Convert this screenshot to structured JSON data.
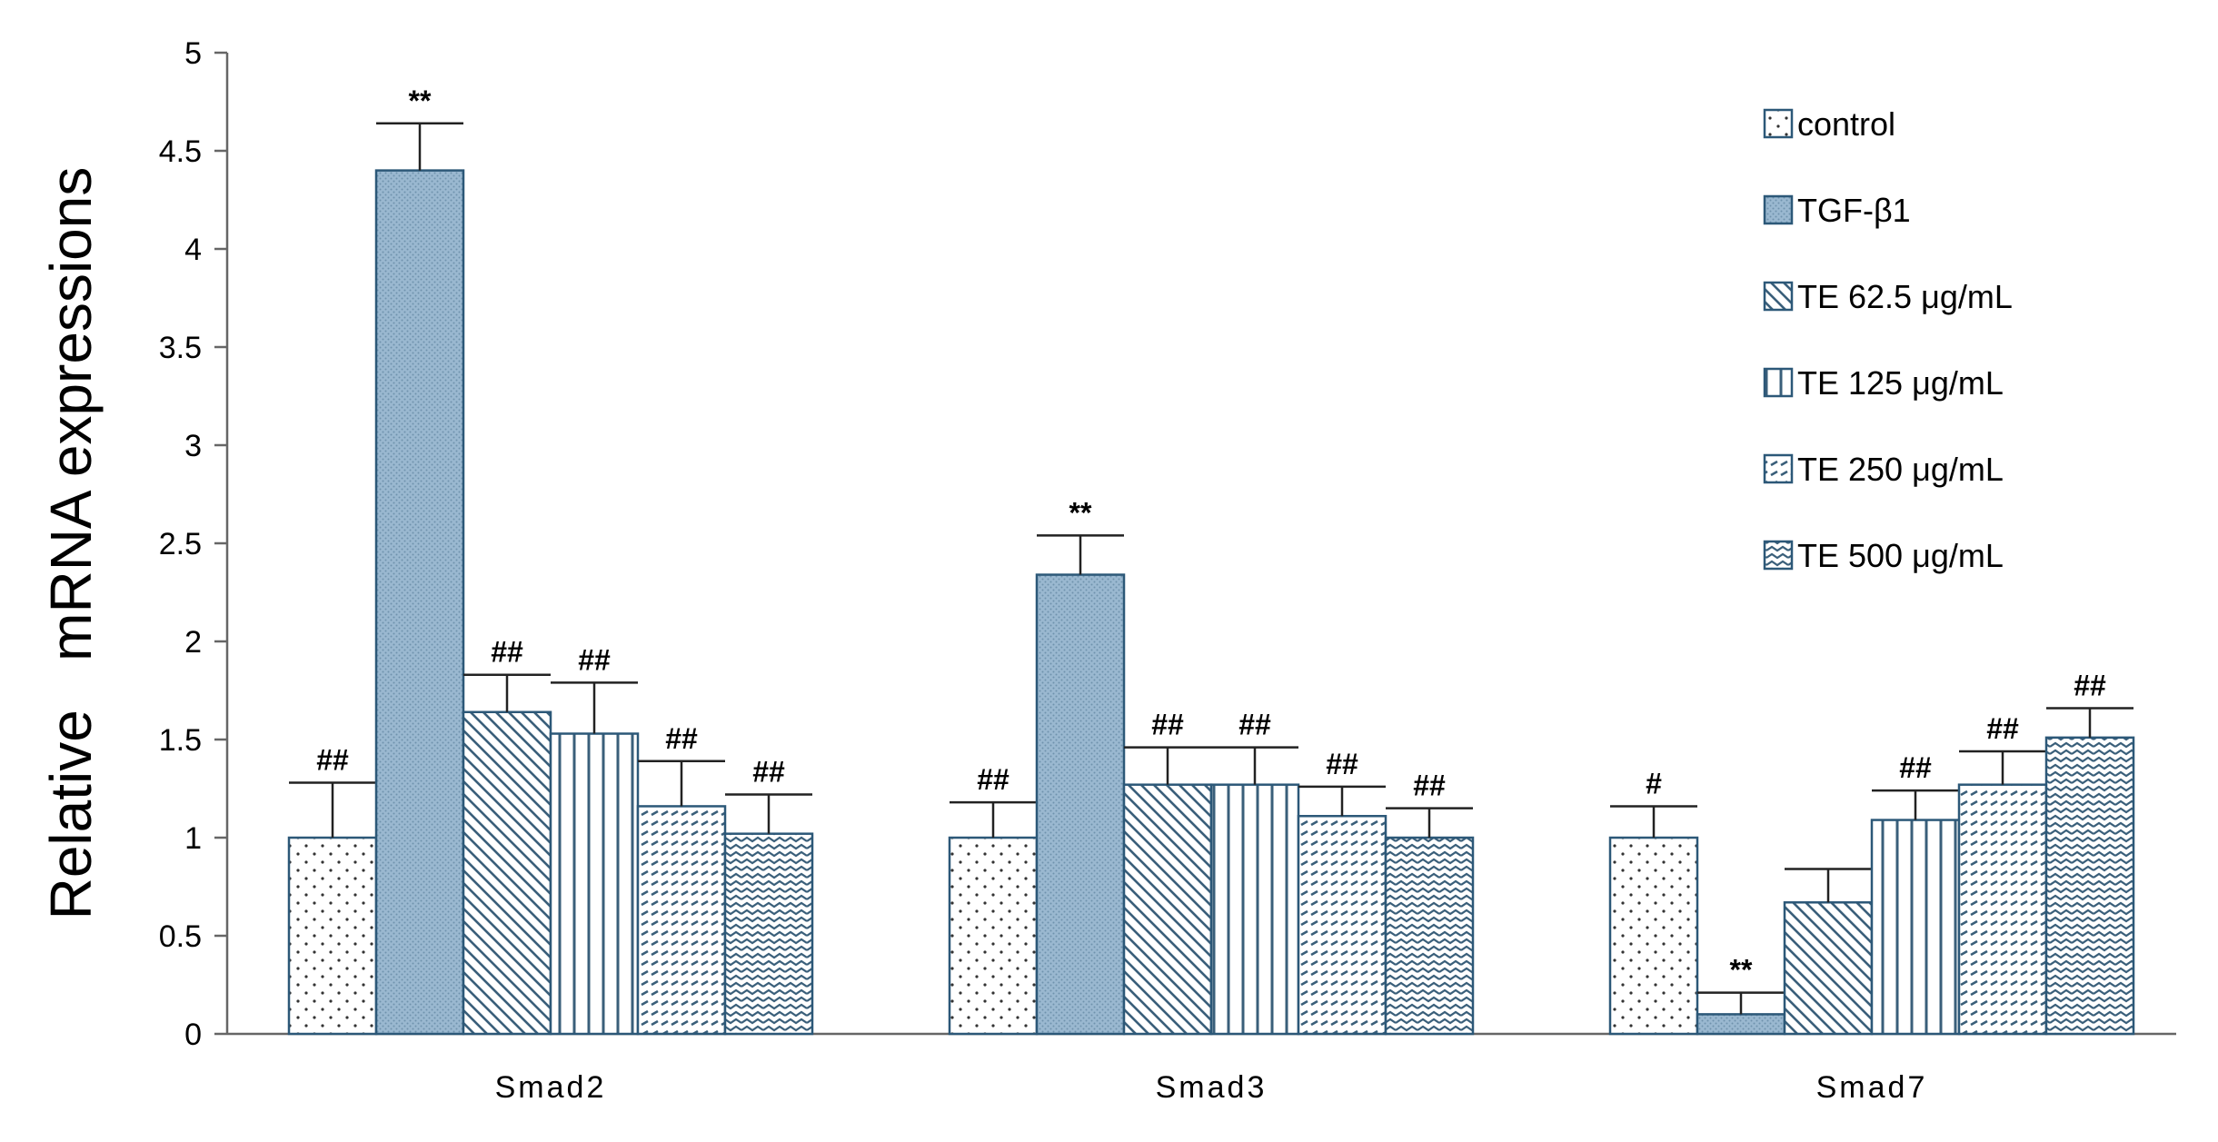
{
  "chart_data": {
    "type": "bar",
    "title": "",
    "xlabel": "",
    "ylabel": "Relative   mRNA expressions",
    "ylim": [
      0,
      5
    ],
    "yticks": [
      0,
      0.5,
      1,
      1.5,
      2,
      2.5,
      3,
      3.5,
      4,
      4.5,
      5
    ],
    "ytick_labels": [
      "0",
      "0.5",
      "1",
      "1.5",
      "2",
      "2.5",
      "3",
      "3.5",
      "4",
      "4.5",
      "5"
    ],
    "grid": false,
    "legend_position": "top-right",
    "categories": [
      "Smad2",
      "Smad3",
      "Smad7"
    ],
    "series": [
      {
        "name": "control",
        "pattern": "dots",
        "fill": "#ffffff",
        "values": [
          1.0,
          1.0,
          1.0
        ],
        "errors": [
          0.28,
          0.18,
          0.16
        ],
        "labels": [
          "##",
          "##",
          "#"
        ]
      },
      {
        "name": "TGF-β1",
        "pattern": "solid",
        "fill": "#9ab8d0",
        "values": [
          4.4,
          2.34,
          0.1
        ],
        "errors": [
          0.24,
          0.2,
          0.11
        ],
        "labels": [
          "**",
          "**",
          "**"
        ]
      },
      {
        "name": "TE 62.5 μg/mL",
        "pattern": "diagonal",
        "fill": "#ffffff",
        "values": [
          1.64,
          1.27,
          0.67
        ],
        "errors": [
          0.19,
          0.19,
          0.17
        ],
        "labels": [
          "##",
          "##",
          ""
        ]
      },
      {
        "name": "TE 125 μg/mL",
        "pattern": "vertical",
        "fill": "#ffffff",
        "values": [
          1.53,
          1.27,
          1.09
        ],
        "errors": [
          0.26,
          0.19,
          0.15
        ],
        "labels": [
          "##",
          "##",
          "##"
        ]
      },
      {
        "name": "TE 250 μg/mL",
        "pattern": "dashes",
        "fill": "#ffffff",
        "values": [
          1.16,
          1.11,
          1.27
        ],
        "errors": [
          0.23,
          0.15,
          0.17
        ],
        "labels": [
          "##",
          "##",
          "##"
        ]
      },
      {
        "name": "TE 500 μg/mL",
        "pattern": "wave",
        "fill": "#ffffff",
        "values": [
          1.02,
          1.0,
          1.51
        ],
        "errors": [
          0.2,
          0.15,
          0.15
        ],
        "labels": [
          "##",
          "##",
          "##"
        ]
      }
    ]
  },
  "colors": {
    "bar_stroke": "#2c5878",
    "pattern_stroke": "#3a5f7a",
    "axis": "#666666"
  }
}
